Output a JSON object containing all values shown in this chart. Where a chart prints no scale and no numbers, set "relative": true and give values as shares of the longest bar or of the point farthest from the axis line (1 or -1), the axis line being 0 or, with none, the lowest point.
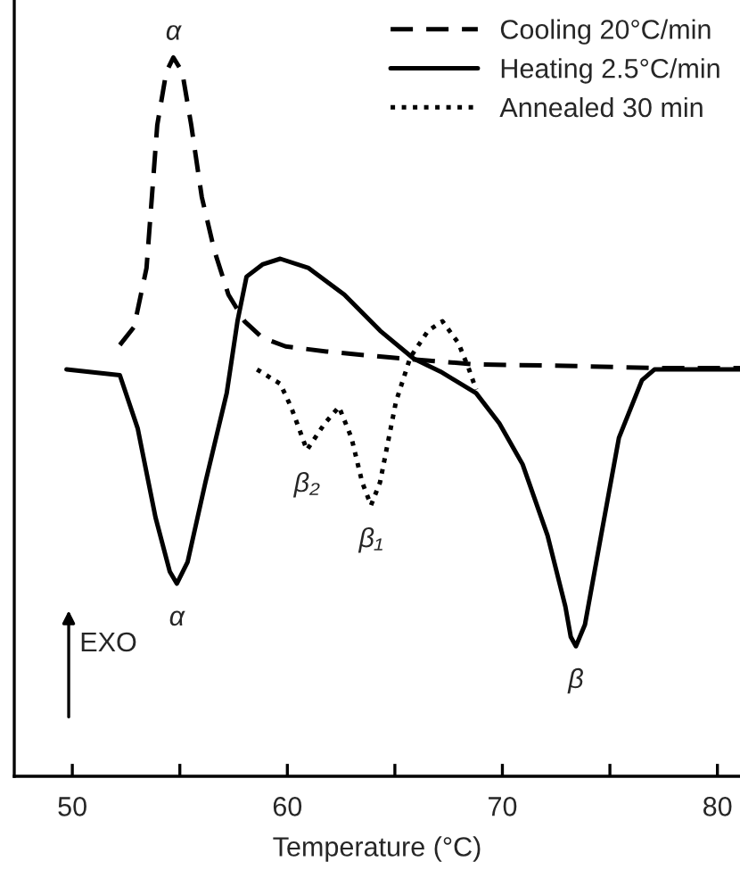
{
  "chart_data": {
    "type": "line",
    "relative": true,
    "xlabel": "Temperature (°C)",
    "xlim": [
      47.3,
      81.05
    ],
    "xticks": [
      50,
      {
        "value": 55,
        "label": null
      },
      60,
      {
        "value": 65,
        "label": null
      },
      70,
      {
        "value": 75,
        "label": null
      },
      80
    ],
    "legend": "top right",
    "grid": false,
    "series": [
      {
        "name": "Cooling 20°C/min",
        "color": "#000000",
        "line_style": "dashed",
        "x": [
          52.21,
          52.87,
          53.45,
          53.7,
          53.95,
          54.37,
          54.7,
          55.11,
          55.53,
          56.02,
          56.6,
          57.26,
          58.01,
          58.84,
          59.92,
          61.82,
          64.64,
          68.78,
          72.93,
          77.07,
          81.05
        ],
        "values": [
          0.6,
          0.625,
          0.707,
          0.806,
          0.906,
          0.98,
          1.0,
          0.98,
          0.906,
          0.806,
          0.732,
          0.67,
          0.633,
          0.61,
          0.598,
          0.591,
          0.583,
          0.573,
          0.571,
          0.568,
          0.568
        ]
      },
      {
        "name": "Heating 2.5°C/min",
        "color": "#000000",
        "line_style": "solid",
        "x": [
          49.73,
          52.21,
          53.04,
          53.87,
          54.53,
          54.86,
          55.36,
          56.19,
          57.18,
          57.68,
          58.1,
          58.84,
          59.67,
          60.99,
          62.65,
          64.31,
          65.88,
          67.12,
          68.78,
          69.86,
          70.94,
          72.1,
          72.93,
          73.18,
          73.42,
          73.84,
          74.59,
          75.42,
          76.49,
          77.07,
          81.05
        ],
        "values": [
          0.566,
          0.558,
          0.484,
          0.36,
          0.285,
          0.268,
          0.298,
          0.409,
          0.533,
          0.633,
          0.695,
          0.712,
          0.72,
          0.707,
          0.67,
          0.62,
          0.581,
          0.563,
          0.533,
          0.491,
          0.434,
          0.335,
          0.236,
          0.194,
          0.181,
          0.211,
          0.335,
          0.471,
          0.551,
          0.566,
          0.566
        ]
      },
      {
        "name": "Annealed 30 min",
        "color": "#000000",
        "line_style": "dotted",
        "x": [
          58.59,
          59.67,
          60.17,
          60.91,
          61.74,
          62.4,
          62.98,
          63.48,
          63.89,
          64.31,
          65.05,
          65.72,
          66.55,
          67.21,
          67.95,
          68.45,
          68.78
        ],
        "values": [
          0.566,
          0.546,
          0.514,
          0.454,
          0.491,
          0.514,
          0.471,
          0.409,
          0.377,
          0.409,
          0.521,
          0.583,
          0.62,
          0.633,
          0.603,
          0.566,
          0.538
        ]
      }
    ],
    "annotations": [
      {
        "text": "α",
        "x": 54.7,
        "y": 1.0
      },
      {
        "text": "α",
        "x": 54.86,
        "y": 0.268
      },
      {
        "text": "β₂",
        "x": 60.91,
        "y": 0.454
      },
      {
        "text": "β₁",
        "x": 63.89,
        "y": 0.377
      },
      {
        "text": "β",
        "x": 73.42,
        "y": 0.181
      },
      "EXO"
    ]
  }
}
